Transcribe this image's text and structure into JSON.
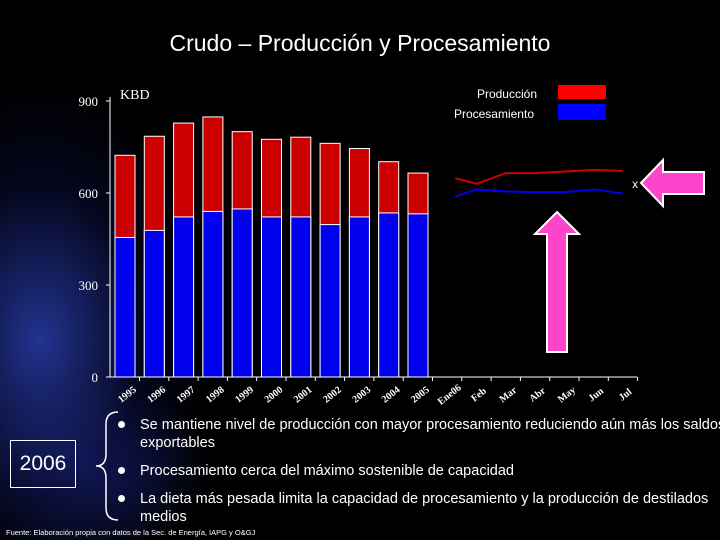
{
  "title": "Crudo – Producción y Procesamiento",
  "chart_data": {
    "type": "bar+line",
    "unit_label": "KBD",
    "ylim": [
      0,
      900
    ],
    "yticks": [
      0,
      300,
      600,
      900
    ],
    "legend": {
      "position": "top-right",
      "entries": [
        {
          "name": "Producción",
          "color": "#ff0000"
        },
        {
          "name": "Procesamiento",
          "color": "#0000ff"
        }
      ]
    },
    "bar_categories": [
      "1995",
      "1996",
      "1997",
      "1998",
      "1999",
      "2000",
      "2001",
      "2002",
      "2003",
      "2004",
      "2005",
      "Ene06"
    ],
    "bar_series": [
      {
        "name": "Producción",
        "color": "#cc0000",
        "values": [
          723,
          785,
          828,
          848,
          800,
          775,
          782,
          762,
          745,
          702,
          665,
          null
        ]
      },
      {
        "name": "Procesamiento",
        "color": "#0000ee",
        "values": [
          455,
          478,
          522,
          540,
          548,
          522,
          522,
          497,
          522,
          535,
          532,
          null
        ]
      }
    ],
    "line_categories": [
      "Ene06",
      "Feb",
      "Mar",
      "Abr",
      "May",
      "Jun",
      "Jul"
    ],
    "line_series": [
      {
        "name": "Producción",
        "color": "#cc0000",
        "values": [
          648,
          630,
          665,
          665,
          670,
          675,
          672
        ]
      },
      {
        "name": "Procesamiento",
        "color": "#0000ee",
        "values": [
          588,
          612,
          605,
          603,
          603,
          612,
          598
        ]
      }
    ],
    "marker": {
      "label": "x",
      "value": 630
    },
    "x_tick_labels": [
      "1995",
      "1996",
      "1997",
      "1998",
      "1999",
      "2000",
      "2001",
      "2002",
      "2003",
      "2004",
      "2005",
      "Ene06",
      "Feb",
      "Mar",
      "Abr",
      "May",
      "Jun",
      "Jul"
    ]
  },
  "note": {
    "year": "2006"
  },
  "bullets": [
    "Se mantiene nivel de producción con mayor procesamiento reduciendo aún más los saldos exportables",
    "Procesamiento cerca del máximo sostenible de capacidad",
    "La dieta más pesada limita la capacidad de procesamiento y la producción de destilados medios"
  ],
  "source": "Fuente: Elaboración propia con datos de la Sec. de Energía, IAPG y O&GJ",
  "colors": {
    "arrow": "#ff44cc",
    "arrow_outline": "#ffffff",
    "legend_red": "#ff0000",
    "legend_blue": "#0000ff"
  }
}
